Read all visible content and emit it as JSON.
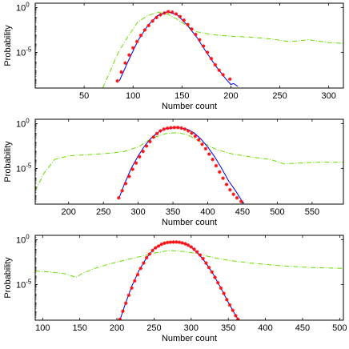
{
  "chart_data": [
    {
      "type": "line",
      "xlabel": "Number count",
      "ylabel": "Probability",
      "xlim": [
        0,
        315
      ],
      "xticks": [
        50,
        100,
        150,
        200,
        250,
        300
      ],
      "y_log": true,
      "ylog_range": [
        -9,
        0.5
      ],
      "yticks": [
        {
          "exp": 0,
          "label": "10",
          "sup": "0"
        },
        {
          "exp": -5,
          "label": "10",
          "sup": "-5"
        }
      ],
      "series": [
        {
          "style": "dashdot",
          "color": "#66dd00",
          "points": [
            [
              69,
              -9.0
            ],
            [
              75,
              -7.5
            ],
            [
              85,
              -5.0
            ],
            [
              95,
              -3.2
            ],
            [
              105,
              -1.6
            ],
            [
              115,
              -0.9
            ],
            [
              125,
              -0.5
            ],
            [
              135,
              -0.7
            ],
            [
              145,
              -1.3
            ],
            [
              155,
              -2.0
            ],
            [
              165,
              -2.7
            ],
            [
              180,
              -3.0
            ],
            [
              200,
              -3.2
            ],
            [
              220,
              -3.3
            ],
            [
              240,
              -3.5
            ],
            [
              260,
              -3.8
            ],
            [
              280,
              -3.6
            ],
            [
              300,
              -3.9
            ],
            [
              315,
              -4.0
            ]
          ]
        },
        {
          "style": "solid",
          "color": "#0000ee",
          "points": [
            [
              86,
              -8.2
            ],
            [
              95,
              -6.0
            ],
            [
              105,
              -3.7
            ],
            [
              115,
              -2.0
            ],
            [
              125,
              -0.9
            ],
            [
              135,
              -0.45
            ],
            [
              145,
              -0.8
            ],
            [
              155,
              -1.9
            ],
            [
              165,
              -3.3
            ],
            [
              175,
              -5.0
            ],
            [
              185,
              -6.6
            ],
            [
              195,
              -8.0
            ],
            [
              200,
              -8.6
            ],
            [
              203,
              -8.5
            ]
          ]
        },
        {
          "style": "dashdot",
          "color": "#0000ee",
          "points": [
            [
              203,
              -8.5
            ],
            [
              208,
              -8.9
            ]
          ]
        }
      ],
      "markers": {
        "color": "#ff1111",
        "points": [
          [
            84,
            -8.2
          ],
          [
            88,
            -7.2
          ],
          [
            92,
            -6.2
          ],
          [
            96,
            -5.3
          ],
          [
            100,
            -4.5
          ],
          [
            104,
            -3.8
          ],
          [
            108,
            -3.1
          ],
          [
            112,
            -2.5
          ],
          [
            116,
            -2.0
          ],
          [
            120,
            -1.5
          ],
          [
            124,
            -1.1
          ],
          [
            128,
            -0.8
          ],
          [
            132,
            -0.6
          ],
          [
            136,
            -0.45
          ],
          [
            140,
            -0.5
          ],
          [
            144,
            -0.7
          ],
          [
            148,
            -1.0
          ],
          [
            152,
            -1.4
          ],
          [
            156,
            -1.9
          ],
          [
            160,
            -2.4
          ],
          [
            164,
            -3.0
          ],
          [
            168,
            -3.6
          ],
          [
            172,
            -4.3
          ],
          [
            176,
            -5.0
          ],
          [
            180,
            -5.7
          ],
          [
            184,
            -6.4
          ],
          [
            188,
            -7.0
          ],
          [
            192,
            -7.5
          ],
          [
            199,
            -8.0
          ]
        ]
      }
    },
    {
      "type": "line",
      "xlabel": "Number count",
      "ylabel": "Probability",
      "xlim": [
        152,
        595
      ],
      "xticks": [
        200,
        250,
        300,
        350,
        400,
        450,
        500,
        550
      ],
      "y_log": true,
      "ylog_range": [
        -9,
        0.5
      ],
      "yticks": [
        {
          "exp": 0,
          "label": "10",
          "sup": "0"
        },
        {
          "exp": -5,
          "label": "10",
          "sup": "-5"
        }
      ],
      "series": [
        {
          "style": "dashdot",
          "color": "#66dd00",
          "points": [
            [
              152,
              -7.5
            ],
            [
              165,
              -5.5
            ],
            [
              180,
              -4.0
            ],
            [
              200,
              -3.6
            ],
            [
              220,
              -3.5
            ],
            [
              240,
              -3.4
            ],
            [
              260,
              -3.3
            ],
            [
              280,
              -3.1
            ],
            [
              300,
              -2.6
            ],
            [
              320,
              -1.6
            ],
            [
              340,
              -1.1
            ],
            [
              355,
              -1.0
            ],
            [
              370,
              -1.2
            ],
            [
              390,
              -2.0
            ],
            [
              410,
              -2.8
            ],
            [
              430,
              -3.3
            ],
            [
              460,
              -3.7
            ],
            [
              490,
              -4.0
            ],
            [
              510,
              -4.5
            ],
            [
              530,
              -4.4
            ],
            [
              560,
              -4.3
            ],
            [
              595,
              -4.3
            ]
          ]
        },
        {
          "style": "solid",
          "color": "#0000ee",
          "points": [
            [
              273,
              -8.2
            ],
            [
              280,
              -6.8
            ],
            [
              290,
              -5.0
            ],
            [
              300,
              -3.6
            ],
            [
              310,
              -2.4
            ],
            [
              320,
              -1.5
            ],
            [
              330,
              -0.9
            ],
            [
              340,
              -0.55
            ],
            [
              355,
              -0.42
            ],
            [
              370,
              -0.6
            ],
            [
              380,
              -1.0
            ],
            [
              390,
              -1.7
            ],
            [
              400,
              -2.6
            ],
            [
              410,
              -3.7
            ],
            [
              420,
              -5.0
            ],
            [
              430,
              -6.4
            ],
            [
              440,
              -7.5
            ],
            [
              448,
              -8.5
            ]
          ]
        },
        {
          "style": "dashdot",
          "color": "#0000ee",
          "points": [
            [
              448,
              -8.5
            ],
            [
              452,
              -8.9
            ]
          ]
        }
      ],
      "markers": {
        "color": "#ff1111",
        "points": [
          [
            272,
            -8.3
          ],
          [
            277,
            -7.5
          ],
          [
            282,
            -6.7
          ],
          [
            287,
            -5.9
          ],
          [
            292,
            -5.1
          ],
          [
            297,
            -4.4
          ],
          [
            302,
            -3.7
          ],
          [
            307,
            -3.1
          ],
          [
            312,
            -2.5
          ],
          [
            317,
            -2.0
          ],
          [
            322,
            -1.5
          ],
          [
            327,
            -1.1
          ],
          [
            332,
            -0.8
          ],
          [
            337,
            -0.6
          ],
          [
            342,
            -0.5
          ],
          [
            347,
            -0.45
          ],
          [
            352,
            -0.42
          ],
          [
            357,
            -0.42
          ],
          [
            362,
            -0.48
          ],
          [
            367,
            -0.6
          ],
          [
            372,
            -0.8
          ],
          [
            377,
            -1.05
          ],
          [
            382,
            -1.4
          ],
          [
            387,
            -1.8
          ],
          [
            392,
            -2.3
          ],
          [
            397,
            -2.8
          ],
          [
            402,
            -3.4
          ],
          [
            407,
            -4.0
          ],
          [
            412,
            -4.7
          ],
          [
            417,
            -5.4
          ],
          [
            422,
            -6.1
          ],
          [
            427,
            -6.8
          ],
          [
            432,
            -7.4
          ],
          [
            437,
            -7.9
          ],
          [
            442,
            -8.3
          ],
          [
            448,
            -8.7
          ]
        ]
      }
    },
    {
      "type": "line",
      "xlabel": "Number count",
      "ylabel": "Probability",
      "xlim": [
        90,
        505
      ],
      "xticks": [
        100,
        150,
        200,
        250,
        300,
        350,
        400,
        450,
        500
      ],
      "y_log": true,
      "ylog_range": [
        -9,
        0.5
      ],
      "yticks": [
        {
          "exp": 0,
          "label": "10",
          "sup": "0"
        },
        {
          "exp": -5,
          "label": "10",
          "sup": "-5"
        }
      ],
      "series": [
        {
          "style": "dashdot",
          "color": "#66dd00",
          "points": [
            [
              90,
              -3.5
            ],
            [
              110,
              -3.6
            ],
            [
              130,
              -3.8
            ],
            [
              145,
              -4.2
            ],
            [
              155,
              -3.7
            ],
            [
              170,
              -3.2
            ],
            [
              190,
              -2.7
            ],
            [
              210,
              -2.3
            ],
            [
              230,
              -1.9
            ],
            [
              250,
              -1.5
            ],
            [
              270,
              -1.2
            ],
            [
              290,
              -1.3
            ],
            [
              310,
              -1.6
            ],
            [
              330,
              -2.0
            ],
            [
              350,
              -2.3
            ],
            [
              380,
              -2.6
            ],
            [
              420,
              -2.9
            ],
            [
              460,
              -3.1
            ],
            [
              505,
              -3.2
            ]
          ]
        },
        {
          "style": "solid",
          "color": "#0000ee",
          "points": [
            [
              204,
              -9.0
            ],
            [
              210,
              -7.5
            ],
            [
              220,
              -5.2
            ],
            [
              230,
              -3.4
            ],
            [
              240,
              -2.0
            ],
            [
              250,
              -1.0
            ],
            [
              260,
              -0.5
            ],
            [
              270,
              -0.3
            ],
            [
              280,
              -0.25
            ],
            [
              290,
              -0.4
            ],
            [
              300,
              -0.8
            ],
            [
              310,
              -1.6
            ],
            [
              320,
              -2.6
            ],
            [
              330,
              -3.9
            ],
            [
              340,
              -5.4
            ],
            [
              350,
              -7.0
            ],
            [
              358,
              -8.2
            ],
            [
              364,
              -9.0
            ]
          ]
        }
      ],
      "markers": {
        "color": "#ff1111",
        "points": [
          [
            204,
            -8.9
          ],
          [
            208,
            -8.0
          ],
          [
            212,
            -7.1
          ],
          [
            216,
            -6.2
          ],
          [
            220,
            -5.4
          ],
          [
            224,
            -4.6
          ],
          [
            228,
            -3.9
          ],
          [
            232,
            -3.2
          ],
          [
            236,
            -2.6
          ],
          [
            240,
            -2.0
          ],
          [
            244,
            -1.6
          ],
          [
            248,
            -1.2
          ],
          [
            252,
            -0.9
          ],
          [
            256,
            -0.7
          ],
          [
            260,
            -0.5
          ],
          [
            264,
            -0.38
          ],
          [
            268,
            -0.3
          ],
          [
            272,
            -0.27
          ],
          [
            276,
            -0.25
          ],
          [
            280,
            -0.25
          ],
          [
            284,
            -0.28
          ],
          [
            288,
            -0.35
          ],
          [
            292,
            -0.45
          ],
          [
            296,
            -0.6
          ],
          [
            300,
            -0.8
          ],
          [
            304,
            -1.05
          ],
          [
            308,
            -1.35
          ],
          [
            312,
            -1.7
          ],
          [
            316,
            -2.1
          ],
          [
            320,
            -2.6
          ],
          [
            324,
            -3.1
          ],
          [
            328,
            -3.6
          ],
          [
            332,
            -4.2
          ],
          [
            336,
            -4.8
          ],
          [
            340,
            -5.4
          ],
          [
            344,
            -6.0
          ],
          [
            348,
            -6.7
          ],
          [
            352,
            -7.3
          ],
          [
            356,
            -7.9
          ],
          [
            360,
            -8.5
          ],
          [
            363,
            -8.9
          ]
        ]
      }
    }
  ]
}
